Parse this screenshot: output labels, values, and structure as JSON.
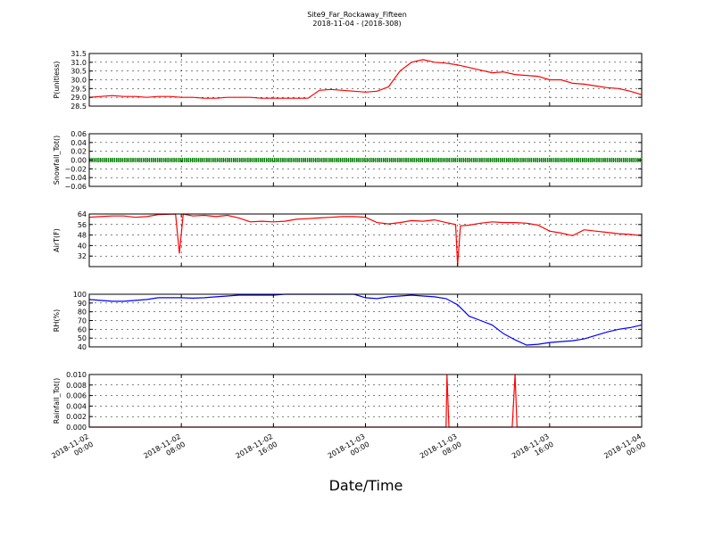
{
  "figure": {
    "title_line1": "Site9_Far_Rockaway_Fifteen",
    "title_line2": "2018-11-04 - (2018-308)",
    "xlabel": "Date/Time"
  },
  "chart_data": [
    {
      "type": "line",
      "ylabel": "P(unitless)",
      "ylim": [
        28.5,
        31.5
      ],
      "yticks": [
        28.5,
        29.0,
        29.5,
        30.0,
        30.5,
        31.0,
        31.5
      ],
      "ytick_labels": [
        "28.5",
        "29.0",
        "29.5",
        "30.0",
        "30.5",
        "31.0",
        "31.5"
      ],
      "xlim": [
        "2018-11-02 00:00",
        "2018-11-04 00:00"
      ],
      "xticks": [
        "2018-11-02 00:00",
        "2018-11-02 08:00",
        "2018-11-02 16:00",
        "2018-11-03 00:00",
        "2018-11-03 08:00",
        "2018-11-03 16:00",
        "2018-11-04 00:00"
      ],
      "xtick_labels": [
        [
          "2018-11-02",
          "00:00"
        ],
        [
          "2018-11-02",
          "08:00"
        ],
        [
          "2018-11-02",
          "16:00"
        ],
        [
          "2018-11-03",
          "00:00"
        ],
        [
          "2018-11-03",
          "08:00"
        ],
        [
          "2018-11-03",
          "16:00"
        ],
        [
          "2018-11-04",
          "00:00"
        ]
      ],
      "grid": true,
      "series": [
        {
          "color": "#ff0000",
          "marker": "line",
          "points": [
            [
              "2018-11-02 00:00",
              29.0
            ],
            [
              "2018-11-02 01:00",
              29.05
            ],
            [
              "2018-11-02 02:00",
              29.1
            ],
            [
              "2018-11-02 03:00",
              29.05
            ],
            [
              "2018-11-02 04:00",
              29.05
            ],
            [
              "2018-11-02 05:00",
              29.0
            ],
            [
              "2018-11-02 06:00",
              29.05
            ],
            [
              "2018-11-02 07:00",
              29.05
            ],
            [
              "2018-11-02 08:00",
              29.0
            ],
            [
              "2018-11-02 09:00",
              29.0
            ],
            [
              "2018-11-02 10:00",
              28.95
            ],
            [
              "2018-11-02 11:00",
              28.95
            ],
            [
              "2018-11-02 12:00",
              29.0
            ],
            [
              "2018-11-02 13:00",
              29.0
            ],
            [
              "2018-11-02 14:00",
              29.0
            ],
            [
              "2018-11-02 15:00",
              28.95
            ],
            [
              "2018-11-02 16:00",
              28.95
            ],
            [
              "2018-11-02 17:00",
              28.95
            ],
            [
              "2018-11-02 18:00",
              28.95
            ],
            [
              "2018-11-02 19:00",
              28.95
            ],
            [
              "2018-11-02 20:00",
              29.4
            ],
            [
              "2018-11-02 21:00",
              29.45
            ],
            [
              "2018-11-02 22:00",
              29.4
            ],
            [
              "2018-11-02 23:00",
              29.35
            ],
            [
              "2018-11-03 00:00",
              29.3
            ],
            [
              "2018-11-03 01:00",
              29.35
            ],
            [
              "2018-11-03 02:00",
              29.6
            ],
            [
              "2018-11-03 03:00",
              30.5
            ],
            [
              "2018-11-03 04:00",
              31.0
            ],
            [
              "2018-11-03 05:00",
              31.15
            ],
            [
              "2018-11-03 06:00",
              31.0
            ],
            [
              "2018-11-03 07:00",
              30.95
            ],
            [
              "2018-11-03 08:00",
              30.85
            ],
            [
              "2018-11-03 09:00",
              30.7
            ],
            [
              "2018-11-03 10:00",
              30.55
            ],
            [
              "2018-11-03 11:00",
              30.4
            ],
            [
              "2018-11-03 12:00",
              30.45
            ],
            [
              "2018-11-03 13:00",
              30.3
            ],
            [
              "2018-11-03 14:00",
              30.25
            ],
            [
              "2018-11-03 15:00",
              30.2
            ],
            [
              "2018-11-03 16:00",
              30.0
            ],
            [
              "2018-11-03 17:00",
              30.0
            ],
            [
              "2018-11-03 18:00",
              29.8
            ],
            [
              "2018-11-03 19:00",
              29.75
            ],
            [
              "2018-11-03 20:00",
              29.65
            ],
            [
              "2018-11-03 21:00",
              29.55
            ],
            [
              "2018-11-03 22:00",
              29.5
            ],
            [
              "2018-11-03 23:00",
              29.35
            ],
            [
              "2018-11-04 00:00",
              29.15
            ]
          ]
        }
      ]
    },
    {
      "type": "scatter",
      "ylabel": "Snowfall_Tot()",
      "ylim": [
        -0.06,
        0.06
      ],
      "yticks": [
        -0.06,
        -0.04,
        -0.02,
        0.0,
        0.02,
        0.04,
        0.06
      ],
      "ytick_labels": [
        "−0.06",
        "−0.04",
        "−0.02",
        "0.00",
        "0.02",
        "0.04",
        "0.06"
      ],
      "xlim": [
        "2018-11-02 00:00",
        "2018-11-04 00:00"
      ],
      "grid": true,
      "series": [
        {
          "color": "#008000",
          "marker": "dot",
          "points": [
            [
              "2018-11-02 00:00",
              0
            ],
            [
              "2018-11-04 00:00",
              0
            ]
          ]
        }
      ]
    },
    {
      "type": "line",
      "ylabel": "AirT(F)",
      "ylim": [
        24,
        64
      ],
      "yticks": [
        32,
        40,
        48,
        56,
        64
      ],
      "ytick_labels": [
        "32",
        "40",
        "48",
        "56",
        "64"
      ],
      "xlim": [
        "2018-11-02 00:00",
        "2018-11-04 00:00"
      ],
      "grid": true,
      "series": [
        {
          "color": "#ff0000",
          "marker": "line",
          "points": [
            [
              "2018-11-02 00:00",
              61.5
            ],
            [
              "2018-11-02 01:00",
              62.0
            ],
            [
              "2018-11-02 02:00",
              62.5
            ],
            [
              "2018-11-02 03:00",
              62.5
            ],
            [
              "2018-11-02 04:00",
              61.5
            ],
            [
              "2018-11-02 05:00",
              62.0
            ],
            [
              "2018-11-02 06:00",
              63.5
            ],
            [
              "2018-11-02 07:30",
              64.0
            ],
            [
              "2018-11-02 07:50",
              34.0
            ],
            [
              "2018-11-02 08:10",
              64.0
            ],
            [
              "2018-11-02 09:00",
              62.5
            ],
            [
              "2018-11-02 10:00",
              63.0
            ],
            [
              "2018-11-02 11:00",
              62.0
            ],
            [
              "2018-11-02 12:00",
              63.0
            ],
            [
              "2018-11-02 13:00",
              61.0
            ],
            [
              "2018-11-02 14:00",
              58.0
            ],
            [
              "2018-11-02 15:00",
              58.5
            ],
            [
              "2018-11-02 16:00",
              58.0
            ],
            [
              "2018-11-02 17:00",
              58.5
            ],
            [
              "2018-11-02 18:00",
              60.0
            ],
            [
              "2018-11-02 19:00",
              60.5
            ],
            [
              "2018-11-02 20:00",
              61.0
            ],
            [
              "2018-11-02 21:00",
              61.5
            ],
            [
              "2018-11-02 22:00",
              62.0
            ],
            [
              "2018-11-02 23:00",
              62.0
            ],
            [
              "2018-11-03 00:00",
              61.5
            ],
            [
              "2018-11-03 01:00",
              57.5
            ],
            [
              "2018-11-03 02:00",
              56.5
            ],
            [
              "2018-11-03 03:00",
              57.5
            ],
            [
              "2018-11-03 04:00",
              59.0
            ],
            [
              "2018-11-03 05:00",
              58.5
            ],
            [
              "2018-11-03 06:00",
              59.5
            ],
            [
              "2018-11-03 07:00",
              57.5
            ],
            [
              "2018-11-03 07:50",
              56.0
            ],
            [
              "2018-11-03 08:00",
              25.0
            ],
            [
              "2018-11-03 08:15",
              55.0
            ],
            [
              "2018-11-03 09:00",
              55.5
            ],
            [
              "2018-11-03 10:00",
              57.0
            ],
            [
              "2018-11-03 11:00",
              58.0
            ],
            [
              "2018-11-03 12:00",
              57.5
            ],
            [
              "2018-11-03 13:00",
              57.5
            ],
            [
              "2018-11-03 14:00",
              57.0
            ],
            [
              "2018-11-03 15:00",
              55.5
            ],
            [
              "2018-11-03 16:00",
              51.0
            ],
            [
              "2018-11-03 17:00",
              49.5
            ],
            [
              "2018-11-03 18:00",
              47.5
            ],
            [
              "2018-11-03 19:00",
              52.0
            ],
            [
              "2018-11-03 20:00",
              51.0
            ],
            [
              "2018-11-03 21:00",
              50.0
            ],
            [
              "2018-11-03 22:00",
              49.0
            ],
            [
              "2018-11-03 23:00",
              48.5
            ],
            [
              "2018-11-04 00:00",
              47.5
            ]
          ]
        }
      ]
    },
    {
      "type": "line",
      "ylabel": "RH(%)",
      "ylim": [
        40,
        100
      ],
      "yticks": [
        40,
        50,
        60,
        70,
        80,
        90,
        100
      ],
      "ytick_labels": [
        "40",
        "50",
        "60",
        "70",
        "80",
        "90",
        "100"
      ],
      "xlim": [
        "2018-11-02 00:00",
        "2018-11-04 00:00"
      ],
      "grid": true,
      "series": [
        {
          "color": "#0000ff",
          "marker": "line",
          "points": [
            [
              "2018-11-02 00:00",
              94.0
            ],
            [
              "2018-11-02 01:00",
              93.0
            ],
            [
              "2018-11-02 02:00",
              92.0
            ],
            [
              "2018-11-02 03:00",
              92.0
            ],
            [
              "2018-11-02 04:00",
              93.0
            ],
            [
              "2018-11-02 05:00",
              94.0
            ],
            [
              "2018-11-02 06:00",
              96.0
            ],
            [
              "2018-11-02 07:00",
              96.0
            ],
            [
              "2018-11-02 08:00",
              96.0
            ],
            [
              "2018-11-02 09:00",
              95.5
            ],
            [
              "2018-11-02 10:00",
              96.0
            ],
            [
              "2018-11-02 11:00",
              97.0
            ],
            [
              "2018-11-02 12:00",
              98.0
            ],
            [
              "2018-11-02 13:00",
              99.0
            ],
            [
              "2018-11-02 14:00",
              99.0
            ],
            [
              "2018-11-02 16:00",
              99.0
            ],
            [
              "2018-11-02 17:00",
              100.0
            ],
            [
              "2018-11-02 23:00",
              100.0
            ],
            [
              "2018-11-03 00:00",
              96.0
            ],
            [
              "2018-11-03 01:00",
              95.0
            ],
            [
              "2018-11-03 02:00",
              97.0
            ],
            [
              "2018-11-03 03:00",
              98.0
            ],
            [
              "2018-11-03 04:00",
              99.0
            ],
            [
              "2018-11-03 05:00",
              98.0
            ],
            [
              "2018-11-03 06:00",
              97.0
            ],
            [
              "2018-11-03 07:00",
              95.0
            ],
            [
              "2018-11-03 08:00",
              88.0
            ],
            [
              "2018-11-03 09:00",
              75.0
            ],
            [
              "2018-11-03 10:00",
              70.0
            ],
            [
              "2018-11-03 11:00",
              65.0
            ],
            [
              "2018-11-03 12:00",
              55.0
            ],
            [
              "2018-11-03 13:00",
              48.0
            ],
            [
              "2018-11-03 14:00",
              42.0
            ],
            [
              "2018-11-03 15:00",
              43.0
            ],
            [
              "2018-11-03 16:00",
              45.0
            ],
            [
              "2018-11-03 17:00",
              46.0
            ],
            [
              "2018-11-03 18:00",
              47.0
            ],
            [
              "2018-11-03 19:00",
              49.0
            ],
            [
              "2018-11-03 20:00",
              53.0
            ],
            [
              "2018-11-03 21:00",
              57.0
            ],
            [
              "2018-11-03 22:00",
              60.0
            ],
            [
              "2018-11-03 23:00",
              62.0
            ],
            [
              "2018-11-04 00:00",
              65.0
            ]
          ]
        }
      ]
    },
    {
      "type": "line",
      "ylabel": "Rainfall_Tot()",
      "ylim": [
        0,
        0.01
      ],
      "yticks": [
        0.0,
        0.002,
        0.004,
        0.006,
        0.008,
        0.01
      ],
      "ytick_labels": [
        "0.000",
        "0.002",
        "0.004",
        "0.006",
        "0.008",
        "0.010"
      ],
      "xlim": [
        "2018-11-02 00:00",
        "2018-11-04 00:00"
      ],
      "grid": true,
      "series": [
        {
          "color": "#ff0000",
          "marker": "line",
          "points": [
            [
              "2018-11-02 00:00",
              0
            ],
            [
              "2018-11-03 07:00",
              0
            ],
            [
              "2018-11-03 07:05",
              0.01
            ],
            [
              "2018-11-03 07:15",
              0
            ],
            [
              "2018-11-03 12:45",
              0
            ],
            [
              "2018-11-03 13:00",
              0.01
            ],
            [
              "2018-11-03 13:10",
              0
            ],
            [
              "2018-11-04 00:00",
              0
            ]
          ]
        }
      ]
    }
  ]
}
